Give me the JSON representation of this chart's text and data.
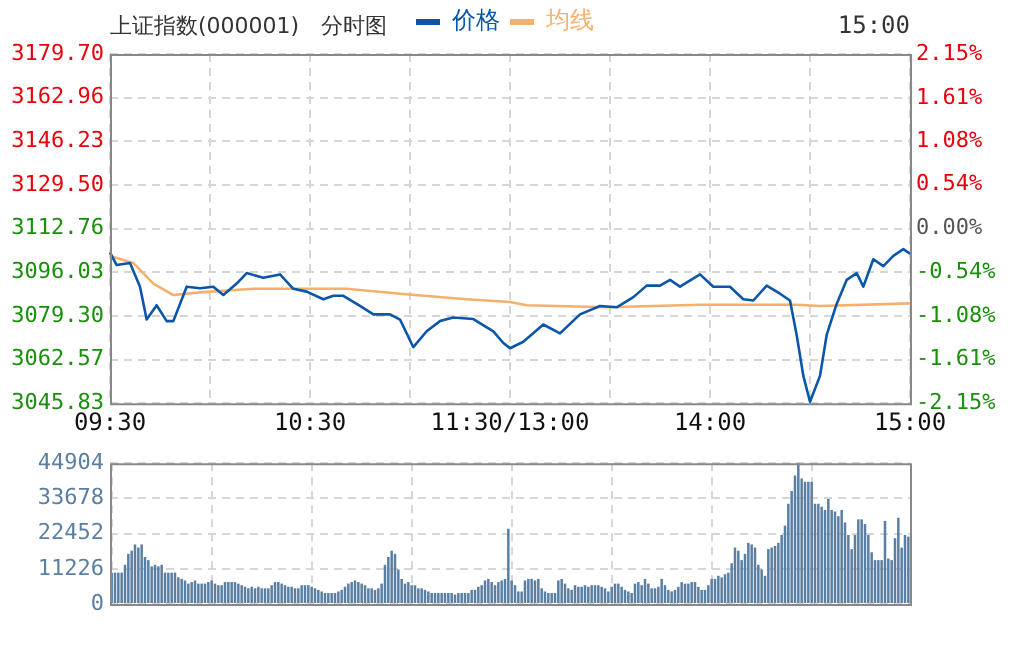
{
  "chart_data": [
    {
      "type": "line",
      "title": "上证指数(000001)",
      "subtitle": "分时图",
      "annotations": [
        "15:00"
      ],
      "legend": "top",
      "grid": true,
      "marker": "none",
      "line_style": "solid",
      "categories": [
        "09:30",
        null,
        null,
        null,
        null,
        null,
        null,
        null,
        null,
        null,
        null,
        null,
        null,
        null,
        null,
        null,
        null,
        null,
        null,
        null,
        null,
        null,
        null,
        null,
        null,
        null,
        null,
        null,
        null,
        null,
        null,
        null,
        null,
        null,
        null,
        null,
        null,
        null,
        null,
        null,
        null,
        null,
        null,
        null,
        null,
        null,
        null,
        null,
        null,
        null,
        null,
        null,
        null,
        null,
        null,
        null,
        null,
        null,
        null,
        null,
        "10:30",
        null,
        null,
        null,
        null,
        null,
        null,
        null,
        null,
        null,
        null,
        null,
        null,
        null,
        null,
        null,
        null,
        null,
        null,
        null,
        null,
        null,
        null,
        null,
        null,
        null,
        null,
        null,
        null,
        null,
        null,
        null,
        null,
        null,
        null,
        null,
        null,
        null,
        null,
        null,
        null,
        null,
        null,
        null,
        null,
        null,
        null,
        null,
        null,
        null,
        null,
        null,
        null,
        null,
        null,
        null,
        null,
        null,
        null,
        null,
        "11:30/13:00",
        null,
        null,
        null,
        null,
        null,
        null,
        null,
        null,
        null,
        null,
        null,
        null,
        null,
        null,
        null,
        null,
        null,
        null,
        null,
        null,
        null,
        null,
        null,
        null,
        null,
        null,
        null,
        null,
        null,
        null,
        null,
        null,
        null,
        null,
        null,
        null,
        null,
        null,
        null,
        null,
        null,
        null,
        null,
        null,
        null,
        null,
        null,
        null,
        null,
        null,
        null,
        null,
        null,
        null,
        null,
        null,
        null,
        null,
        null,
        "14:00",
        null,
        null,
        null,
        null,
        null,
        null,
        null,
        null,
        null,
        null,
        null,
        null,
        null,
        null,
        null,
        null,
        null,
        null,
        null,
        null,
        null,
        null,
        null,
        null,
        null,
        null,
        null,
        null,
        null,
        null,
        null,
        null,
        null,
        null,
        null,
        null,
        null,
        null,
        null,
        null,
        null,
        null,
        null,
        null,
        null,
        null,
        null,
        null,
        null,
        null,
        null,
        null,
        null,
        null,
        null,
        null,
        null,
        null,
        null,
        "15:00"
      ],
      "ylim": [
        3045.83,
        3179.7
      ],
      "yticks": [
        {
          "value": 3045.83,
          "label": "3045.83"
        },
        {
          "value": 3062.57,
          "label": "3062.57"
        },
        {
          "value": 3079.3,
          "label": "3079.30"
        },
        {
          "value": 3096.03,
          "label": "3096.03"
        },
        {
          "value": 3112.76,
          "label": "3112.76"
        },
        {
          "value": 3129.5,
          "label": "3129.50"
        },
        {
          "value": 3146.23,
          "label": "3146.23"
        },
        {
          "value": 3162.96,
          "label": "3162.96"
        },
        {
          "value": 3179.7,
          "label": "3179.70"
        }
      ],
      "y2lim": [
        -2.15,
        2.15
      ],
      "y2ticks": [
        {
          "value": -2.15,
          "label": "-2.15%"
        },
        {
          "value": -1.61,
          "label": "-1.61%"
        },
        {
          "value": -1.08,
          "label": "-1.08%"
        },
        {
          "value": -0.54,
          "label": "-0.54%"
        },
        {
          "value": 0,
          "label": "0.00%"
        },
        {
          "value": 0.54,
          "label": "0.54%"
        },
        {
          "value": 1.08,
          "label": "1.08%"
        },
        {
          "value": 1.61,
          "label": "1.61%"
        },
        {
          "value": 2.15,
          "label": "2.15%"
        }
      ],
      "series": [
        {
          "name": "价格",
          "color": "#0a56a8",
          "values": [
            3103.6,
            null,
            3098.8,
            null,
            null,
            null,
            3099.6,
            null,
            null,
            3090.5,
            null,
            3077.9,
            null,
            null,
            3083.4,
            null,
            null,
            3077.3,
            null,
            3077.3,
            null,
            null,
            null,
            3090.5,
            null,
            null,
            null,
            3089.9,
            null,
            null,
            null,
            3090.5,
            null,
            null,
            3087.3,
            null,
            null,
            null,
            3091.7,
            null,
            null,
            3095.7,
            null,
            null,
            null,
            null,
            3093.9,
            null,
            null,
            null,
            null,
            3095.2,
            null,
            null,
            null,
            3089.7,
            null,
            null,
            null,
            3088.6,
            null,
            null,
            null,
            null,
            3085.7,
            null,
            null,
            3087.0,
            null,
            null,
            3087.0,
            null,
            null,
            null,
            null,
            3083.1,
            null,
            null,
            null,
            3079.9,
            null,
            null,
            null,
            null,
            3079.9,
            null,
            null,
            3077.9,
            null,
            null,
            null,
            3067.3,
            null,
            null,
            null,
            3073.4,
            null,
            null,
            null,
            3077.3,
            null,
            null,
            null,
            3078.7,
            null,
            null,
            null,
            null,
            null,
            3078.1,
            null,
            null,
            null,
            null,
            null,
            3073.4,
            null,
            null,
            3068.9,
            null,
            3066.9,
            null,
            null,
            null,
            3069.4,
            null,
            null,
            null,
            null,
            null,
            3076.0,
            null,
            null,
            null,
            null,
            3072.6,
            null,
            null,
            null,
            null,
            null,
            3079.9,
            null,
            null,
            null,
            null,
            null,
            3083.1,
            null,
            null,
            null,
            null,
            3082.6,
            null,
            null,
            null,
            null,
            3086.5,
            null,
            null,
            null,
            3090.9,
            null,
            null,
            null,
            3090.9,
            null,
            null,
            3093.1,
            null,
            null,
            3090.5,
            null,
            null,
            null,
            null,
            null,
            3095.2,
            null,
            null,
            null,
            3090.5,
            null,
            null,
            null,
            null,
            3090.5,
            null,
            null,
            null,
            3085.7,
            null,
            null,
            3085.2,
            null,
            null,
            null,
            3090.9,
            null,
            null,
            null,
            3087.8,
            null,
            null,
            3085.2,
            null,
            3072.0,
            null,
            3056.3,
            null,
            3046.4,
            null,
            null,
            3056.3,
            null,
            3072.0,
            null,
            null,
            3083.9,
            null,
            null,
            3093.1,
            null,
            null,
            3095.7,
            null,
            3090.5,
            null,
            null,
            3101.0,
            null,
            null,
            3098.4,
            null,
            null,
            3102.3,
            null,
            null,
            3104.9,
            null,
            3103.1
          ]
        },
        {
          "name": "均线",
          "color": "#f5b06b",
          "values": [
            3102.3,
            null,
            null,
            null,
            null,
            null,
            null,
            3099.6,
            null,
            null,
            null,
            null,
            null,
            3091.7,
            null,
            null,
            null,
            null,
            null,
            3087.3,
            null,
            null,
            null,
            null,
            null,
            null,
            null,
            3088.3,
            null,
            null,
            null,
            null,
            null,
            null,
            null,
            null,
            null,
            null,
            null,
            null,
            null,
            null,
            null,
            3089.7,
            null,
            null,
            null,
            null,
            null,
            null,
            null,
            null,
            null,
            null,
            null,
            null,
            null,
            null,
            null,
            null,
            null,
            null,
            null,
            null,
            null,
            null,
            null,
            null,
            null,
            null,
            null,
            3089.7,
            null,
            null,
            null,
            null,
            null,
            null,
            null,
            null,
            null,
            null,
            null,
            null,
            null,
            null,
            null,
            3087.8,
            null,
            null,
            null,
            null,
            null,
            null,
            null,
            null,
            null,
            null,
            null,
            null,
            null,
            null,
            null,
            null,
            null,
            null,
            null,
            3085.7,
            null,
            null,
            null,
            null,
            null,
            null,
            null,
            null,
            null,
            null,
            null,
            null,
            3084.6,
            null,
            null,
            null,
            null,
            3083.4,
            null,
            null,
            null,
            null,
            null,
            null,
            null,
            null,
            null,
            null,
            null,
            null,
            null,
            null,
            null,
            null,
            null,
            null,
            null,
            null,
            null,
            null,
            null,
            3082.6,
            null,
            null,
            null,
            null,
            null,
            null,
            null,
            null,
            null,
            null,
            null,
            null,
            null,
            null,
            null,
            null,
            null,
            null,
            null,
            null,
            null,
            null,
            null,
            null,
            null,
            null,
            null,
            3083.6,
            null,
            null,
            null,
            null,
            null,
            null,
            null,
            null,
            null,
            null,
            null,
            null,
            null,
            null,
            null,
            null,
            null,
            null,
            null,
            null,
            null,
            null,
            null,
            null,
            null,
            null,
            null,
            null,
            3083.6,
            null,
            null,
            null,
            null,
            null,
            null,
            3083.1,
            null,
            null,
            null,
            null,
            null,
            null,
            null,
            null,
            null,
            null,
            null,
            null,
            null,
            null,
            null,
            null,
            null,
            null,
            null,
            null,
            null,
            null,
            null,
            null,
            null,
            null,
            3084.1
          ]
        }
      ]
    },
    {
      "type": "bar",
      "grid": true,
      "tick_labels": "y",
      "categories": [
        null,
        null,
        null,
        null,
        null,
        null,
        null,
        null,
        null,
        null,
        null,
        null,
        null,
        null,
        null,
        null,
        null,
        null,
        null,
        null,
        null,
        null,
        null,
        null,
        null,
        null,
        null,
        null,
        null,
        null,
        null,
        null,
        null,
        null,
        null,
        null,
        null,
        null,
        null,
        null,
        null,
        null,
        null,
        null,
        null,
        null,
        null,
        null,
        null,
        null,
        null,
        null,
        null,
        null,
        null,
        null,
        null,
        null,
        null,
        null,
        null,
        null,
        null,
        null,
        null,
        null,
        null,
        null,
        null,
        null,
        null,
        null,
        null,
        null,
        null,
        null,
        null,
        null,
        null,
        null,
        null,
        null,
        null,
        null,
        null,
        null,
        null,
        null,
        null,
        null,
        null,
        null,
        null,
        null,
        null,
        null,
        null,
        null,
        null,
        null,
        null,
        null,
        null,
        null,
        null,
        null,
        null,
        null,
        null,
        null,
        null,
        null,
        null,
        null,
        null,
        null,
        null,
        null,
        null,
        null,
        null,
        null,
        null,
        null,
        null,
        null,
        null,
        null,
        null,
        null,
        null,
        null,
        null,
        null,
        null,
        null,
        null,
        null,
        null,
        null,
        null,
        null,
        null,
        null,
        null,
        null,
        null,
        null,
        null,
        null,
        null,
        null,
        null,
        null,
        null,
        null,
        null,
        null,
        null,
        null,
        null,
        null,
        null,
        null,
        null,
        null,
        null,
        null,
        null,
        null,
        null,
        null,
        null,
        null,
        null,
        null,
        null,
        null,
        null,
        null,
        null,
        null,
        null,
        null,
        null,
        null,
        null,
        null,
        null,
        null,
        null,
        null,
        null,
        null,
        null,
        null,
        null,
        null,
        null,
        null,
        null,
        null,
        null,
        null,
        null,
        null,
        null,
        null,
        null,
        null,
        null,
        null,
        null,
        null,
        null,
        null,
        null,
        null,
        null,
        null,
        null,
        null,
        null,
        null,
        null,
        null,
        null,
        null,
        null,
        null,
        null,
        null,
        null,
        null,
        null,
        null,
        null,
        null,
        null,
        null
      ],
      "ylim": [
        0,
        44904
      ],
      "yticks": [
        0,
        11226,
        22452,
        33678,
        44904
      ],
      "series": [
        {
          "color": "#5a7fa3",
          "values": [
            10000,
            10000,
            10000,
            10000,
            12500,
            16000,
            17000,
            19000,
            18000,
            19000,
            15000,
            14000,
            12000,
            12500,
            12000,
            12500,
            10000,
            10000,
            10000,
            10000,
            8500,
            8000,
            7500,
            6500,
            7000,
            7500,
            6500,
            6500,
            6500,
            7000,
            7500,
            6500,
            6000,
            6000,
            7000,
            7000,
            7000,
            7000,
            6500,
            6000,
            5500,
            5000,
            5500,
            5000,
            5500,
            5000,
            5000,
            5000,
            6000,
            7000,
            7000,
            6500,
            6000,
            5500,
            5500,
            5000,
            5000,
            6000,
            6000,
            6000,
            5500,
            5000,
            4500,
            4000,
            3500,
            3500,
            3500,
            3500,
            4000,
            4500,
            5500,
            6500,
            7000,
            7500,
            7000,
            6500,
            6000,
            5000,
            5000,
            4500,
            5000,
            6500,
            12500,
            15000,
            17000,
            16000,
            11000,
            8000,
            6500,
            7000,
            6000,
            6000,
            5000,
            5000,
            4500,
            4000,
            3500,
            3500,
            3500,
            3500,
            3500,
            3500,
            3500,
            3000,
            3500,
            3500,
            3500,
            3500,
            4500,
            4500,
            5500,
            6000,
            7500,
            8000,
            7000,
            6000,
            7000,
            7500,
            8000,
            24000,
            7500,
            6000,
            4000,
            4000,
            7500,
            8000,
            8000,
            7500,
            8000,
            5000,
            4000,
            3500,
            3500,
            3500,
            7500,
            8000,
            6500,
            5000,
            4500,
            6000,
            5500,
            5500,
            6000,
            5500,
            6000,
            6000,
            6000,
            5500,
            5000,
            4000,
            5500,
            6500,
            6500,
            5500,
            4500,
            4000,
            3500,
            6500,
            7000,
            6000,
            8000,
            6500,
            5000,
            5000,
            5500,
            8000,
            6000,
            4500,
            4000,
            4500,
            5500,
            7000,
            6500,
            6500,
            7000,
            7000,
            5500,
            4500,
            4500,
            6000,
            8000,
            8000,
            9000,
            8500,
            9500,
            10000,
            13000,
            18000,
            17000,
            14000,
            16000,
            19500,
            19000,
            18000,
            12500,
            11000,
            9000,
            17500,
            18000,
            18500,
            19500,
            22000,
            25000,
            32000,
            36000,
            41000,
            44900,
            40000,
            39000,
            39000,
            39000,
            32000,
            32000,
            31000,
            30000,
            33500,
            30000,
            29500,
            28000,
            30000,
            26000,
            22000,
            17500,
            22000,
            27000,
            27000,
            25500,
            22000,
            16500,
            14000,
            14000,
            14000,
            26500,
            14500,
            14000,
            21000,
            27500,
            18000,
            22000,
            21500
          ]
        }
      ]
    }
  ]
}
